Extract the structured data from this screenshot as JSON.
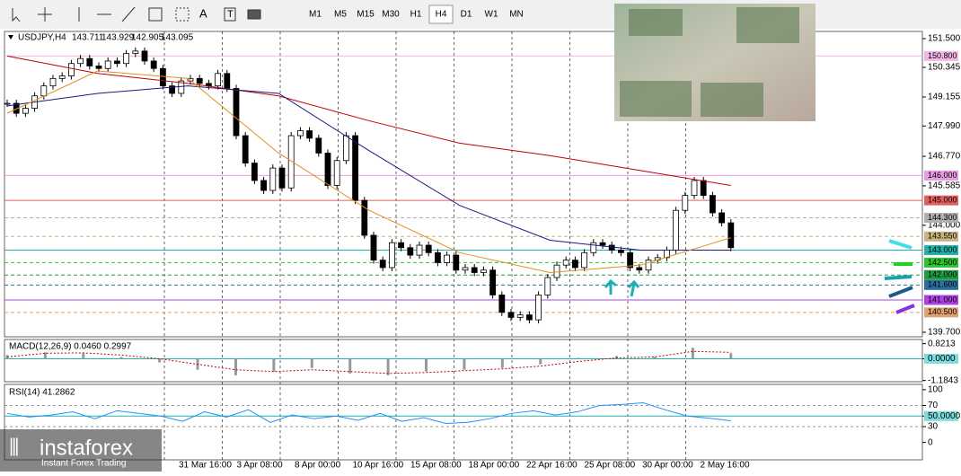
{
  "toolbar": {
    "timeframes": [
      "M1",
      "M5",
      "M15",
      "M30",
      "H1",
      "H4",
      "D1",
      "W1",
      "MN"
    ],
    "active": "H4"
  },
  "branding": {
    "logo": "instaforex",
    "tagline": "Instant Forex Trading"
  },
  "chart_data": [
    {
      "type": "candlestick",
      "title": "USDJPY,H4",
      "header_values": [
        143.711,
        143.929,
        142.905,
        143.095
      ],
      "categories": [
        "31 Mar 16:00",
        "3 Apr 08:00",
        "8 Apr 00:00",
        "10 Apr 16:00",
        "15 Apr 08:00",
        "18 Apr 00:00",
        "22 Apr 16:00",
        "25 Apr 08:00",
        "30 Apr 00:00",
        "2 May 16:00"
      ],
      "ylim": [
        139.7,
        151.5
      ],
      "yticks": [
        {
          "value": 151.5,
          "label": "151.500"
        },
        150.345,
        149.155,
        {
          "value": 147.99,
          "label": "147.990"
        },
        {
          "value": 146.77,
          "label": "146.770"
        },
        145.585,
        {
          "value": 144,
          "label": "144.000"
        },
        {
          "value": 139.7,
          "label": "139.700"
        }
      ],
      "levels": [
        {
          "value": 150.8,
          "label": "150.800",
          "color": "#f3b7e6"
        },
        {
          "value": 146,
          "label": "146.000",
          "color": "#e89be0"
        },
        {
          "value": 145,
          "label": "145.000",
          "color": "#e06060"
        },
        {
          "value": 144.3,
          "label": "144.300",
          "color": "#b0b0b0"
        },
        {
          "value": 143.55,
          "label": "143.550",
          "color": "#c8b480"
        },
        {
          "value": 143,
          "label": "143.000",
          "color": "#20b2aa"
        },
        {
          "value": 142.5,
          "label": "142.500",
          "color": "#2ec42e"
        },
        {
          "value": 142,
          "label": "142.000",
          "color": "#1f9c3f"
        },
        {
          "value": 141.6,
          "label": "141.600",
          "color": "#2b6f9e"
        },
        {
          "value": 141,
          "label": "141.000",
          "color": "#b040e0"
        },
        {
          "value": 140.5,
          "label": "140.500",
          "color": "#e0a070"
        }
      ],
      "closes": [
        148.9,
        148.5,
        148.7,
        149.2,
        149.6,
        149.9,
        150.0,
        150.5,
        150.7,
        150.4,
        150.3,
        150.6,
        150.5,
        150.9,
        151.0,
        150.6,
        150.3,
        149.6,
        149.3,
        149.8,
        149.9,
        149.7,
        149.6,
        150.1,
        149.5,
        147.6,
        146.5,
        145.8,
        145.4,
        146.3,
        145.5,
        147.6,
        147.8,
        147.5,
        146.9,
        145.6,
        146.6,
        147.6,
        145.0,
        143.6,
        142.6,
        142.3,
        143.3,
        143.1,
        142.8,
        143.2,
        142.9,
        142.5,
        142.8,
        142.2,
        142.3,
        142.1,
        142.2,
        141.2,
        140.5,
        140.3,
        140.4,
        140.2,
        141.2,
        141.9,
        142.4,
        142.6,
        142.3,
        142.9,
        143.3,
        143.2,
        143.0,
        142.9,
        142.3,
        142.2,
        142.6,
        142.7,
        143.0,
        144.6,
        145.2,
        145.8,
        145.2,
        144.5,
        144.1,
        143.1
      ],
      "moving_averages": [
        {
          "color": "#c00000",
          "values": [
            150.8,
            150.1,
            149.7,
            149.2,
            148.2,
            147.3,
            146.8,
            146.2,
            145.6
          ]
        },
        {
          "color": "#1a1a80",
          "values": [
            148.8,
            149.3,
            149.6,
            149.3,
            147.0,
            144.8,
            143.4,
            143.0,
            143.0
          ]
        },
        {
          "color": "#e09020",
          "values": [
            148.5,
            150.2,
            149.9,
            146.9,
            144.6,
            142.9,
            142.1,
            142.4,
            143.5
          ]
        }
      ]
    },
    {
      "type": "macd",
      "title": "MACD(12,26,9) 0.0460 0.2997",
      "ylim": [
        -1.25,
        1.05
      ],
      "yticks": [
        0.8213,
        {
          "value": 0,
          "label": "0.0000"
        },
        -1.1843
      ],
      "histogram": [
        0.2,
        0.35,
        0.3,
        0.1,
        -0.2,
        -0.6,
        -0.9,
        -0.7,
        -0.5,
        -0.8,
        -0.9,
        -0.7,
        -0.6,
        -0.5,
        -0.3,
        0.05,
        0.15,
        0.1,
        0.6,
        0.3
      ],
      "signal": [
        0.1,
        0.3,
        0.32,
        0.2,
        0.0,
        -0.3,
        -0.6,
        -0.7,
        -0.6,
        -0.7,
        -0.8,
        -0.75,
        -0.65,
        -0.55,
        -0.4,
        -0.15,
        0.05,
        0.1,
        0.4,
        0.35
      ]
    },
    {
      "type": "rsi",
      "title": "RSI(14) 41.2862",
      "ylim": [
        -33,
        110
      ],
      "yticks": [
        100,
        70,
        {
          "value": 50,
          "label": "50.0000"
        },
        30,
        0
      ],
      "values": [
        55,
        48,
        52,
        58,
        45,
        60,
        55,
        50,
        40,
        58,
        48,
        62,
        38,
        52,
        45,
        50,
        42,
        55,
        40,
        47,
        36,
        38,
        45,
        55,
        60,
        52,
        58,
        70,
        72,
        75,
        62,
        50,
        46,
        41
      ]
    }
  ]
}
